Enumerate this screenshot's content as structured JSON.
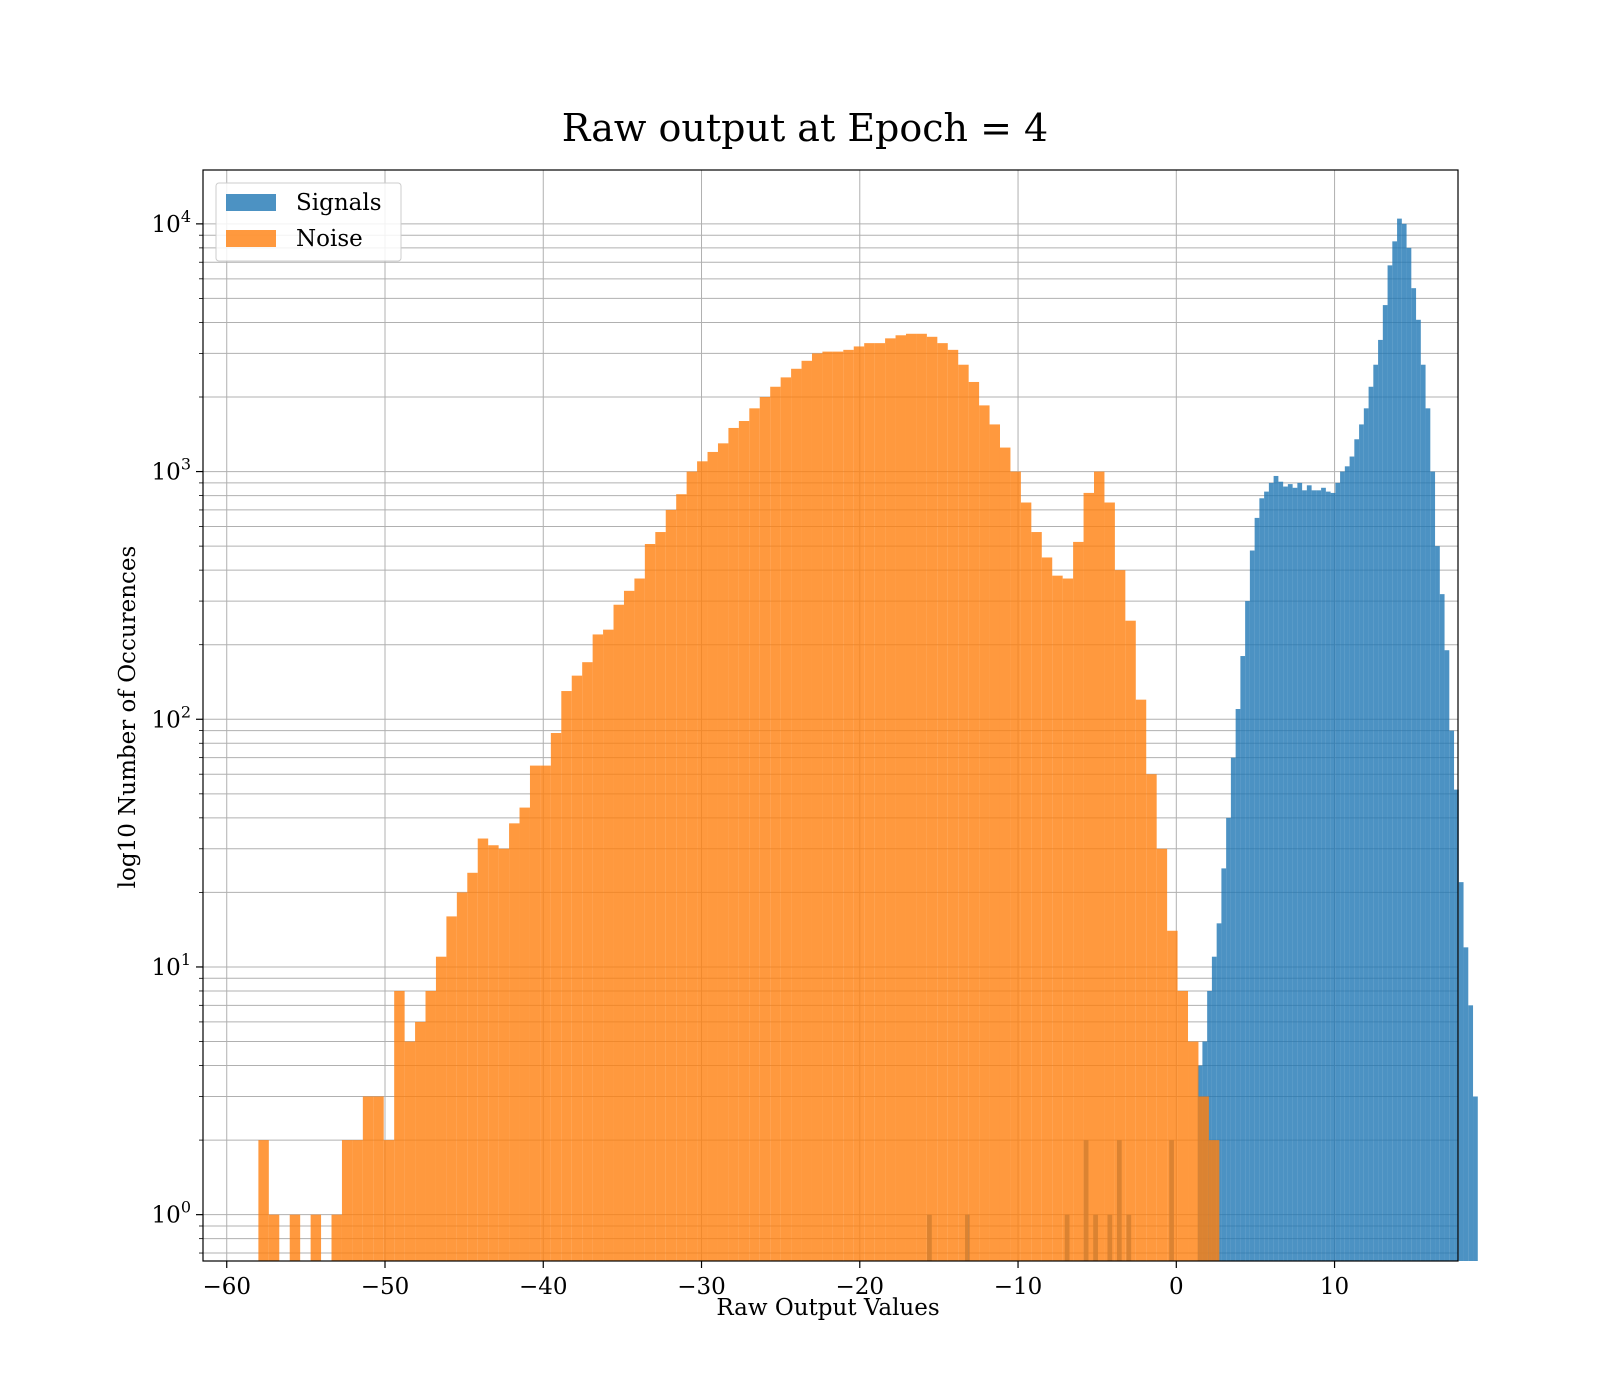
{
  "chart_data": {
    "type": "bar",
    "title": "Raw output at Epoch = 4",
    "xlabel": "Raw Output Values",
    "ylabel": "log10 Number of Occurences",
    "yscale": "log",
    "xlim": [
      -61.5,
      17.8
    ],
    "ylim": [
      0.65,
      16500
    ],
    "xticks": [
      -60,
      -50,
      -40,
      -30,
      -20,
      -10,
      0,
      10
    ],
    "xtick_labels": [
      "−60",
      "−50",
      "−40",
      "−30",
      "−20",
      "−10",
      "0",
      "10"
    ],
    "yticks": [
      {
        "value": 1,
        "base": "10",
        "exp": "0"
      },
      {
        "value": 10,
        "base": "10",
        "exp": "1"
      },
      {
        "value": 100,
        "base": "10",
        "exp": "2"
      },
      {
        "value": 1000,
        "base": "10",
        "exp": "3"
      },
      {
        "value": 10000,
        "base": "10",
        "exp": "4"
      }
    ],
    "grid": true,
    "legend_position": "top-left",
    "series": [
      {
        "name": "Signals",
        "color": "#1f77b4",
        "opacity": 0.8,
        "bin_start": -15.75,
        "bin_width": 0.3,
        "counts": [
          1,
          0,
          0,
          0,
          0,
          0,
          0,
          0,
          1,
          0,
          0,
          0,
          0,
          0,
          0,
          0,
          0,
          0,
          0,
          0,
          0,
          0,
          0,
          0,
          0,
          0,
          0,
          0,
          0,
          1,
          0,
          0,
          0,
          2,
          0,
          1,
          0,
          0,
          1,
          0,
          2,
          0,
          1,
          0,
          0,
          0,
          0,
          0,
          0,
          0,
          0,
          2,
          0,
          0,
          0,
          0,
          0,
          4,
          5,
          8,
          11,
          15,
          25,
          40,
          70,
          110,
          180,
          300,
          480,
          650,
          780,
          830,
          900,
          960,
          910,
          870,
          890,
          860,
          900,
          840,
          880,
          840,
          840,
          860,
          830,
          820,
          900,
          1000,
          1050,
          1150,
          1350,
          1550,
          1800,
          2200,
          2700,
          3400,
          4700,
          6800,
          8500,
          10500,
          10000,
          8000,
          5500,
          4100,
          2700,
          1800,
          1000,
          500,
          320,
          190,
          90,
          52,
          22,
          12,
          7,
          3
        ]
      },
      {
        "name": "Noise",
        "color": "#ff7f0e",
        "opacity": 0.8,
        "bin_start": -58.0,
        "bin_width": 0.66,
        "counts": [
          2,
          1,
          0,
          1,
          0,
          1,
          0,
          1,
          2,
          2,
          3,
          3,
          2,
          8,
          5,
          6,
          8,
          11,
          16,
          20,
          24,
          33,
          31,
          30,
          38,
          44,
          65,
          65,
          88,
          130,
          150,
          170,
          220,
          230,
          290,
          330,
          370,
          510,
          570,
          700,
          810,
          1000,
          1100,
          1200,
          1300,
          1500,
          1600,
          1800,
          2000,
          2200,
          2400,
          2600,
          2800,
          3000,
          3050,
          3050,
          3100,
          3200,
          3300,
          3300,
          3450,
          3550,
          3600,
          3600,
          3500,
          3300,
          3100,
          2700,
          2300,
          1850,
          1550,
          1250,
          1000,
          750,
          570,
          450,
          380,
          370,
          520,
          820,
          1000,
          750,
          400,
          250,
          120,
          60,
          30,
          14,
          8,
          5,
          3,
          2
        ]
      }
    ]
  }
}
